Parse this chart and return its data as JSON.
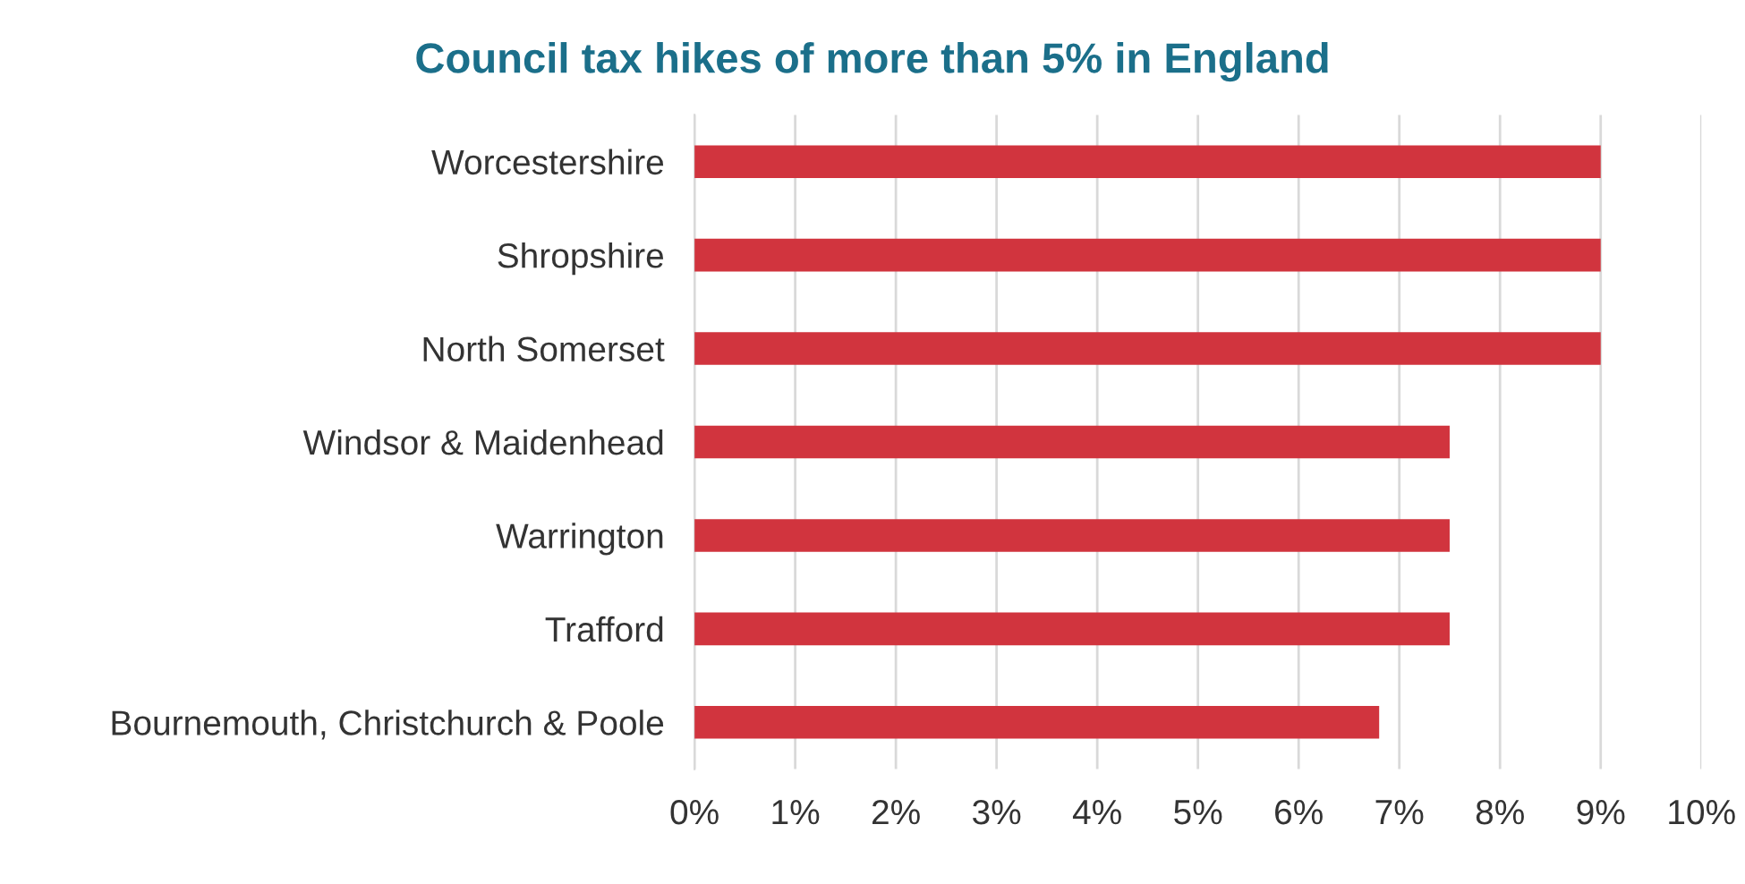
{
  "chart_data": {
    "type": "bar",
    "orientation": "horizontal",
    "title": "Council tax hikes of more than 5% in England",
    "categories": [
      "Worcestershire",
      "Shropshire",
      "North Somerset",
      "Windsor & Maidenhead",
      "Warrington",
      "Trafford",
      "Bournemouth, Christchurch & Poole"
    ],
    "values": [
      9,
      9,
      9,
      7.5,
      7.5,
      7.5,
      6.8
    ],
    "color": "#d1343e",
    "xlim": [
      0,
      10
    ],
    "xticks": [
      {
        "value": 0,
        "label": "0%"
      },
      {
        "value": 1,
        "label": "1%"
      },
      {
        "value": 2,
        "label": "2%"
      },
      {
        "value": 3,
        "label": "3%"
      },
      {
        "value": 4,
        "label": "4%"
      },
      {
        "value": 5,
        "label": "5%"
      },
      {
        "value": 6,
        "label": "6%"
      },
      {
        "value": 7,
        "label": "7%"
      },
      {
        "value": 8,
        "label": "8%"
      },
      {
        "value": 9,
        "label": "9%"
      },
      {
        "value": 10,
        "label": "10%"
      }
    ],
    "grid": "x"
  }
}
